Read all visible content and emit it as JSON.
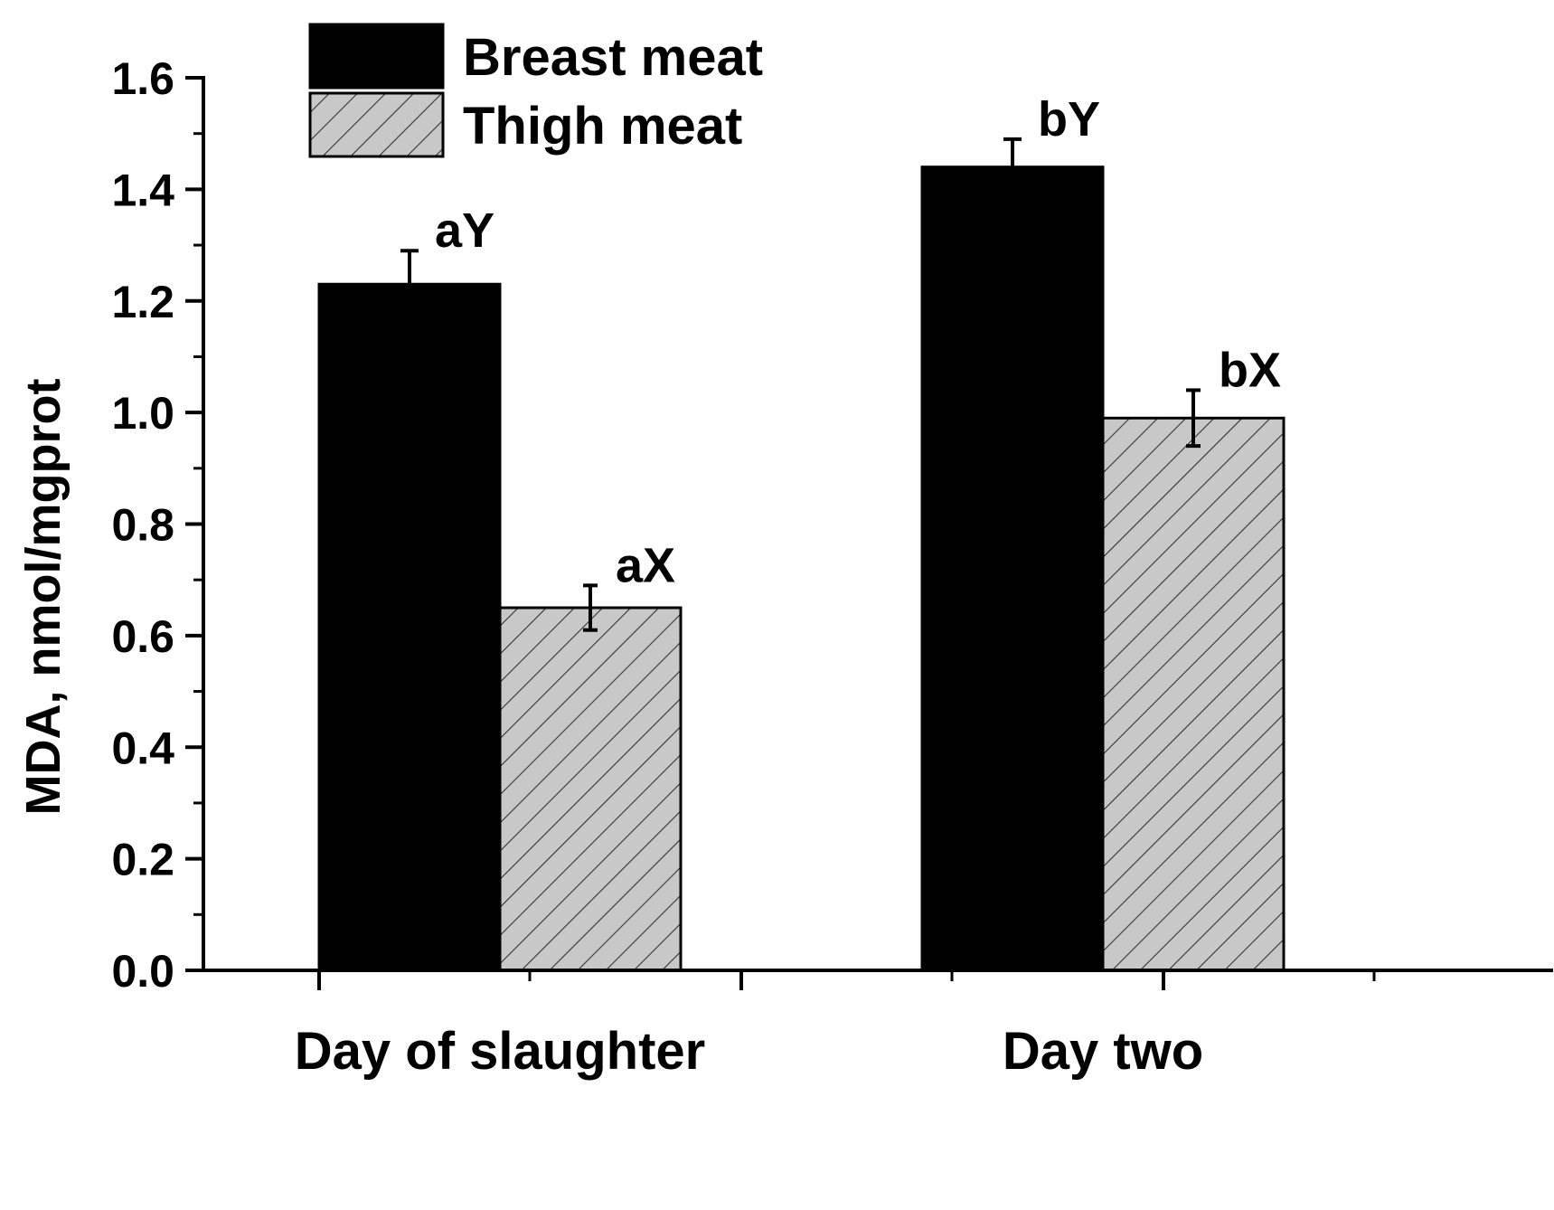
{
  "chart_data": {
    "type": "bar",
    "title": "",
    "xlabel": "",
    "ylabel": "MDA, nmol/mgprot",
    "ylim": [
      0,
      1.6
    ],
    "yticks": [
      0.0,
      0.2,
      0.4,
      0.6,
      0.8,
      1.0,
      1.2,
      1.4,
      1.6
    ],
    "ytick_labels": [
      "0.0",
      "0.2",
      "0.4",
      "0.6",
      "0.8",
      "1.0",
      "1.2",
      "1.4",
      "1.6"
    ],
    "categories": [
      "Day of slaughter",
      "Day two"
    ],
    "series": [
      {
        "name": "Breast meat",
        "values": [
          1.23,
          1.44
        ],
        "errors": [
          0.06,
          0.05
        ],
        "labels": [
          "aY",
          "bY"
        ],
        "fill": "#000000",
        "pattern": "solid"
      },
      {
        "name": "Thigh meat",
        "values": [
          0.65,
          0.99
        ],
        "errors": [
          0.04,
          0.05
        ],
        "labels": [
          "aX",
          "bX"
        ],
        "fill": "#c8c8c8",
        "pattern": "hatch"
      }
    ],
    "legend_position": "top-left",
    "grid": false
  }
}
